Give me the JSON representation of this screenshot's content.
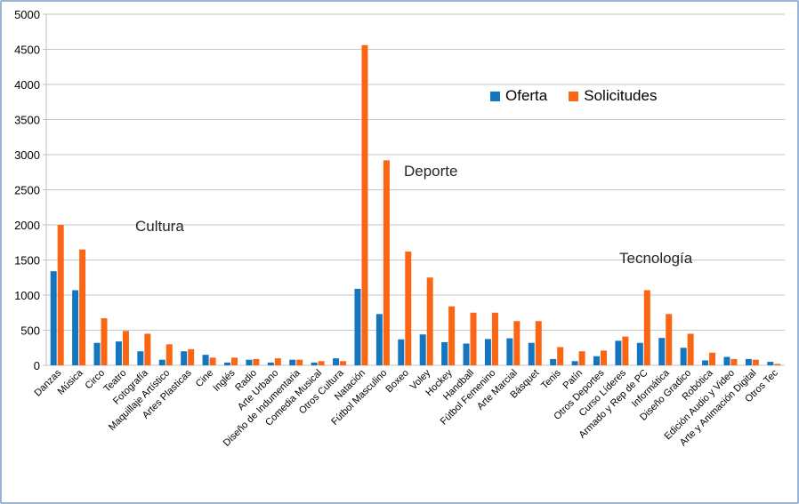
{
  "legend": {
    "items": [
      {
        "label": "Oferta",
        "color": "#1476be"
      },
      {
        "label": "Solicitudes",
        "color": "#fa6613"
      }
    ]
  },
  "annotations": [
    {
      "text": "Cultura"
    },
    {
      "text": "Deporte"
    },
    {
      "text": "Tecnología"
    }
  ],
  "chart_data": {
    "type": "bar",
    "title": "",
    "xlabel": "",
    "ylabel": "",
    "ylim": [
      0,
      5000
    ],
    "ytick_step": 500,
    "grid": true,
    "legend_position": "top-right-inside",
    "group_labels": [
      "Cultura",
      "Deporte",
      "Tecnología"
    ],
    "categories": [
      "Danzas",
      "Música",
      "Circo",
      "Teatro",
      "Fotografía",
      "Maquillaje Artístico",
      "Artes Plasticas",
      "Cine",
      "Inglés",
      "Radio",
      "Arte Urbano",
      "Diseño de Indumentaria",
      "Comedia Musical",
      "Otros Cultura",
      "Natación",
      "Fútbol Masculino",
      "Boxeo",
      "Voley",
      "Hockey",
      "Handball",
      "Fútbol Femenino",
      "Arte Marcial",
      "Básquet",
      "Tenis",
      "Patín",
      "Otros Deportes",
      "Curso Líderes",
      "Armado y Rep de PC",
      "Informática",
      "Diseño Gradico",
      "Robótica",
      "Edición Audio y Video",
      "Arte y Animación Digital",
      "Otros Tec"
    ],
    "series": [
      {
        "name": "Oferta",
        "color": "#1476be",
        "values": [
          1340,
          1070,
          320,
          340,
          200,
          80,
          200,
          150,
          40,
          80,
          40,
          80,
          40,
          100,
          1090,
          730,
          370,
          440,
          330,
          310,
          375,
          385,
          320,
          90,
          60,
          130,
          350,
          320,
          390,
          250,
          70,
          120,
          90,
          50
        ]
      },
      {
        "name": "Solicitudes",
        "color": "#fa6613",
        "values": [
          2000,
          1650,
          670,
          490,
          450,
          300,
          230,
          110,
          110,
          90,
          100,
          80,
          60,
          60,
          4560,
          2920,
          1620,
          1250,
          840,
          750,
          750,
          630,
          630,
          260,
          200,
          210,
          410,
          1070,
          730,
          450,
          180,
          90,
          80,
          20
        ]
      }
    ],
    "colors": {
      "gridline": "#c6c6c6",
      "axis": "#bfbfbf",
      "frame_border": "#9bb3d4"
    }
  }
}
